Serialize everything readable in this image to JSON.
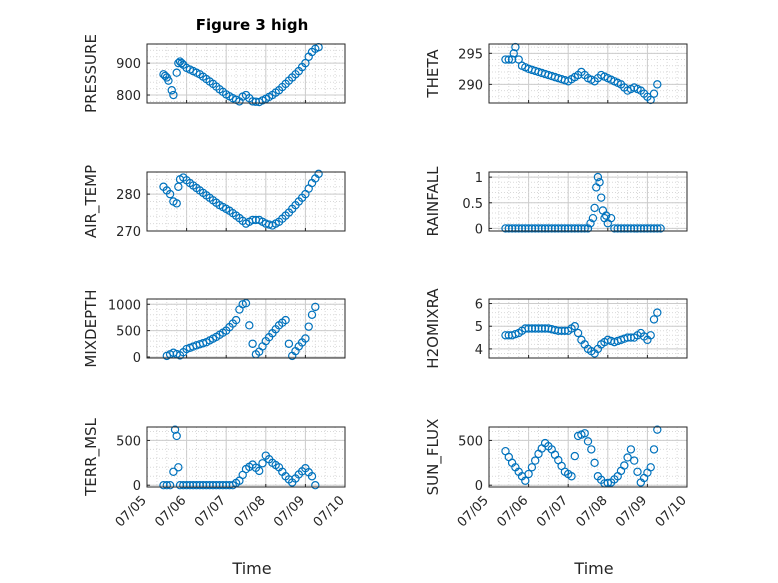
{
  "figure": {
    "title": "Figure 3 high",
    "xlabel_left": "Time",
    "xlabel_right": "Time",
    "marker_color": "#0072BD",
    "grid": "major and minor, dotted"
  },
  "chart_data": [
    {
      "type": "scatter",
      "ylabel": "PRESSURE",
      "xlim": [
        "07/05",
        "07/10"
      ],
      "ylim": [
        775,
        960
      ],
      "yticks": [
        "800",
        "900"
      ],
      "x": [
        "07/05 10:00",
        "07/05 11:00",
        "07/05 12:00",
        "07/05 13:00",
        "07/05 15:00",
        "07/05 16:00",
        "07/05 18:00",
        "07/05 19:00",
        "07/05 20:00",
        "07/05 21:00",
        "07/05 22:00",
        "07/06 00:00",
        "07/06 04:00",
        "07/06 08:00",
        "07/06 12:00",
        "07/06 16:00",
        "07/06 20:00",
        "07/07 00:00",
        "07/07 04:00",
        "07/07 08:00",
        "07/07 10:00",
        "07/07 12:00",
        "07/07 14:00",
        "07/07 16:00",
        "07/07 20:00",
        "07/08 00:00",
        "07/08 04:00",
        "07/08 08:00",
        "07/08 12:00",
        "07/08 16:00",
        "07/08 20:00",
        "07/09 00:00",
        "07/09 02:00",
        "07/09 04:00",
        "07/09 06:00",
        "07/09 08:00"
      ],
      "y": [
        865,
        860,
        855,
        845,
        815,
        800,
        870,
        900,
        905,
        900,
        895,
        885,
        875,
        865,
        850,
        835,
        818,
        802,
        790,
        780,
        795,
        800,
        790,
        780,
        778,
        788,
        800,
        815,
        835,
        855,
        875,
        900,
        920,
        935,
        945,
        950
      ]
    },
    {
      "type": "scatter",
      "ylabel": "THETA",
      "xlim": [
        "07/05",
        "07/10"
      ],
      "ylim": [
        287,
        296.5
      ],
      "yticks": [
        "290",
        "295"
      ],
      "x": [
        "07/05 10:00",
        "07/05 12:00",
        "07/05 14:00",
        "07/05 15:00",
        "07/05 16:00",
        "07/05 18:00",
        "07/05 20:00",
        "07/06 00:00",
        "07/06 06:00",
        "07/06 12:00",
        "07/06 18:00",
        "07/07 00:00",
        "07/07 06:00",
        "07/07 08:00",
        "07/07 12:00",
        "07/07 16:00",
        "07/07 20:00",
        "07/08 00:00",
        "07/08 04:00",
        "07/08 08:00",
        "07/08 12:00",
        "07/08 16:00",
        "07/08 20:00",
        "07/09 00:00",
        "07/09 02:00",
        "07/09 04:00",
        "07/09 06:00"
      ],
      "y": [
        294,
        294,
        294,
        295,
        296,
        294,
        293,
        292.5,
        292,
        291.5,
        291,
        290.5,
        291.5,
        292,
        291,
        290.5,
        291.5,
        291,
        290.5,
        290,
        289,
        289.5,
        289,
        288,
        287.5,
        288.5,
        290
      ]
    },
    {
      "type": "scatter",
      "ylabel": "AIR_TEMP",
      "xlim": [
        "07/05",
        "07/10"
      ],
      "ylim": [
        270,
        286
      ],
      "yticks": [
        "270",
        "280"
      ],
      "x": [
        "07/05 10:00",
        "07/05 12:00",
        "07/05 14:00",
        "07/05 16:00",
        "07/05 18:00",
        "07/05 19:00",
        "07/05 20:00",
        "07/05 22:00",
        "07/06 02:00",
        "07/06 08:00",
        "07/06 14:00",
        "07/06 20:00",
        "07/07 02:00",
        "07/07 08:00",
        "07/07 12:00",
        "07/07 16:00",
        "07/07 20:00",
        "07/08 00:00",
        "07/08 04:00",
        "07/08 08:00",
        "07/08 14:00",
        "07/08 20:00",
        "07/09 00:00",
        "07/09 04:00",
        "07/09 08:00"
      ],
      "y": [
        282,
        281,
        280,
        278,
        277.5,
        282,
        284,
        284.5,
        283,
        281,
        279,
        277,
        275.5,
        273.5,
        272,
        273,
        273,
        272,
        271.5,
        272.5,
        275,
        278,
        280,
        283,
        285.5
      ]
    },
    {
      "type": "scatter",
      "ylabel": "RAINFALL",
      "xlim": [
        "07/05",
        "07/10"
      ],
      "ylim": [
        -0.05,
        1.1
      ],
      "yticks": [
        "0",
        "0.5",
        "1"
      ],
      "x": [
        "07/05 10:00",
        "07/06 00:00",
        "07/06 12:00",
        "07/07 00:00",
        "07/07 12:00",
        "07/07 15:00",
        "07/07 16:00",
        "07/07 17:00",
        "07/07 18:00",
        "07/07 19:00",
        "07/07 20:00",
        "07/07 21:00",
        "07/07 22:00",
        "07/07 23:00",
        "07/08 00:00",
        "07/08 02:00",
        "07/08 04:00",
        "07/08 12:00",
        "07/09 00:00",
        "07/09 08:00"
      ],
      "y": [
        0,
        0,
        0,
        0,
        0,
        0.2,
        0.4,
        0.8,
        1.0,
        0.9,
        0.6,
        0.35,
        0.2,
        0.25,
        0.1,
        0.2,
        0,
        0,
        0,
        0
      ]
    },
    {
      "type": "scatter",
      "ylabel": "MIXDEPTH",
      "xlim": [
        "07/05",
        "07/10"
      ],
      "ylim": [
        -20,
        1100
      ],
      "yticks": [
        "0",
        "500",
        "1000"
      ],
      "x": [
        "07/05 12:00",
        "07/05 16:00",
        "07/05 20:00",
        "07/06 00:00",
        "07/06 06:00",
        "07/06 12:00",
        "07/06 18:00",
        "07/07 00:00",
        "07/07 06:00",
        "07/07 08:00",
        "07/07 10:00",
        "07/07 12:00",
        "07/07 14:00",
        "07/07 16:00",
        "07/07 18:00",
        "07/07 20:00",
        "07/08 00:00",
        "07/08 04:00",
        "07/08 08:00",
        "07/08 12:00",
        "07/08 14:00",
        "07/08 16:00",
        "07/08 20:00",
        "07/09 00:00",
        "07/09 04:00",
        "07/09 06:00"
      ],
      "y": [
        20,
        80,
        30,
        150,
        220,
        280,
        380,
        500,
        700,
        900,
        1000,
        1020,
        600,
        250,
        50,
        100,
        300,
        450,
        600,
        700,
        250,
        20,
        200,
        350,
        800,
        950
      ]
    },
    {
      "type": "scatter",
      "ylabel": "H2OMIXRA",
      "xlim": [
        "07/05",
        "07/10"
      ],
      "ylim": [
        3.6,
        6.2
      ],
      "yticks": [
        "4",
        "5",
        "6"
      ],
      "x": [
        "07/05 10:00",
        "07/05 14:00",
        "07/05 18:00",
        "07/05 22:00",
        "07/06 06:00",
        "07/06 12:00",
        "07/06 18:00",
        "07/07 00:00",
        "07/07 04:00",
        "07/07 06:00",
        "07/07 08:00",
        "07/07 12:00",
        "07/07 16:00",
        "07/07 20:00",
        "07/08 00:00",
        "07/08 04:00",
        "07/08 08:00",
        "07/08 12:00",
        "07/08 16:00",
        "07/08 20:00",
        "07/09 00:00",
        "07/09 02:00",
        "07/09 04:00",
        "07/09 06:00"
      ],
      "y": [
        4.6,
        4.6,
        4.7,
        4.9,
        4.9,
        4.9,
        4.8,
        4.8,
        5.0,
        4.7,
        4.4,
        4.0,
        3.8,
        4.2,
        4.4,
        4.3,
        4.4,
        4.5,
        4.5,
        4.7,
        4.4,
        4.6,
        5.3,
        5.6
      ]
    },
    {
      "type": "scatter",
      "ylabel": "TERR_MSL",
      "xlim": [
        "07/05",
        "07/10"
      ],
      "ylim": [
        -20,
        650
      ],
      "yticks": [
        "0",
        "500"
      ],
      "x": [
        "07/05 10:00",
        "07/05 14:00",
        "07/05 16:00",
        "07/05 17:00",
        "07/05 18:00",
        "07/05 19:00",
        "07/05 20:00",
        "07/05 22:00",
        "07/06 06:00",
        "07/06 12:00",
        "07/06 18:00",
        "07/07 00:00",
        "07/07 04:00",
        "07/07 08:00",
        "07/07 12:00",
        "07/07 16:00",
        "07/07 20:00",
        "07/08 00:00",
        "07/08 04:00",
        "07/08 08:00",
        "07/08 12:00",
        "07/08 16:00",
        "07/08 20:00",
        "07/09 00:00",
        "07/09 04:00",
        "07/09 06:00"
      ],
      "y": [
        0,
        0,
        150,
        620,
        550,
        200,
        0,
        0,
        0,
        0,
        0,
        0,
        0,
        50,
        180,
        230,
        160,
        330,
        250,
        200,
        100,
        30,
        120,
        190,
        100,
        0
      ]
    },
    {
      "type": "scatter",
      "ylabel": "SUN_FLUX",
      "xlim": [
        "07/05",
        "07/10"
      ],
      "ylim": [
        -20,
        650
      ],
      "yticks": [
        "0",
        "500"
      ],
      "x": [
        "07/05 10:00",
        "07/05 14:00",
        "07/05 18:00",
        "07/05 22:00",
        "07/06 02:00",
        "07/06 06:00",
        "07/06 10:00",
        "07/06 14:00",
        "07/06 18:00",
        "07/06 22:00",
        "07/07 02:00",
        "07/07 06:00",
        "07/07 10:00",
        "07/07 14:00",
        "07/07 18:00",
        "07/07 22:00",
        "07/08 02:00",
        "07/08 06:00",
        "07/08 10:00",
        "07/08 14:00",
        "07/08 18:00",
        "07/08 20:00",
        "07/08 22:00",
        "07/09 02:00",
        "07/09 04:00",
        "07/09 06:00"
      ],
      "y": [
        380,
        250,
        150,
        50,
        200,
        350,
        470,
        400,
        280,
        150,
        100,
        550,
        580,
        400,
        100,
        20,
        30,
        100,
        220,
        400,
        150,
        30,
        80,
        200,
        400,
        620
      ]
    }
  ],
  "xticks": [
    "07/05",
    "07/06",
    "07/07",
    "07/08",
    "07/09",
    "07/10"
  ]
}
